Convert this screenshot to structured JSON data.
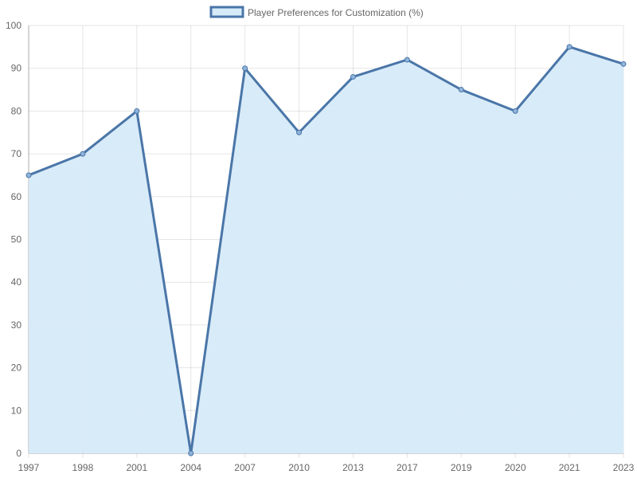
{
  "chart_data": {
    "type": "area",
    "legend": {
      "label": "Player Preferences for Customization (%)",
      "position": "top"
    },
    "categories": [
      "1997",
      "1998",
      "2001",
      "2004",
      "2007",
      "2010",
      "2013",
      "2017",
      "2019",
      "2020",
      "2021",
      "2023"
    ],
    "series": [
      {
        "name": "Player Preferences for Customization (%)",
        "values": [
          65,
          70,
          80,
          0,
          90,
          75,
          88,
          92,
          85,
          80,
          95,
          91
        ],
        "line_color": "#4a76a8",
        "fill_color": "#d6eaf8"
      }
    ],
    "ylim": [
      0,
      100
    ],
    "yticks": [
      0,
      10,
      20,
      30,
      40,
      50,
      60,
      70,
      80,
      90,
      100
    ],
    "grid": true,
    "xlabel": "",
    "ylabel": ""
  }
}
